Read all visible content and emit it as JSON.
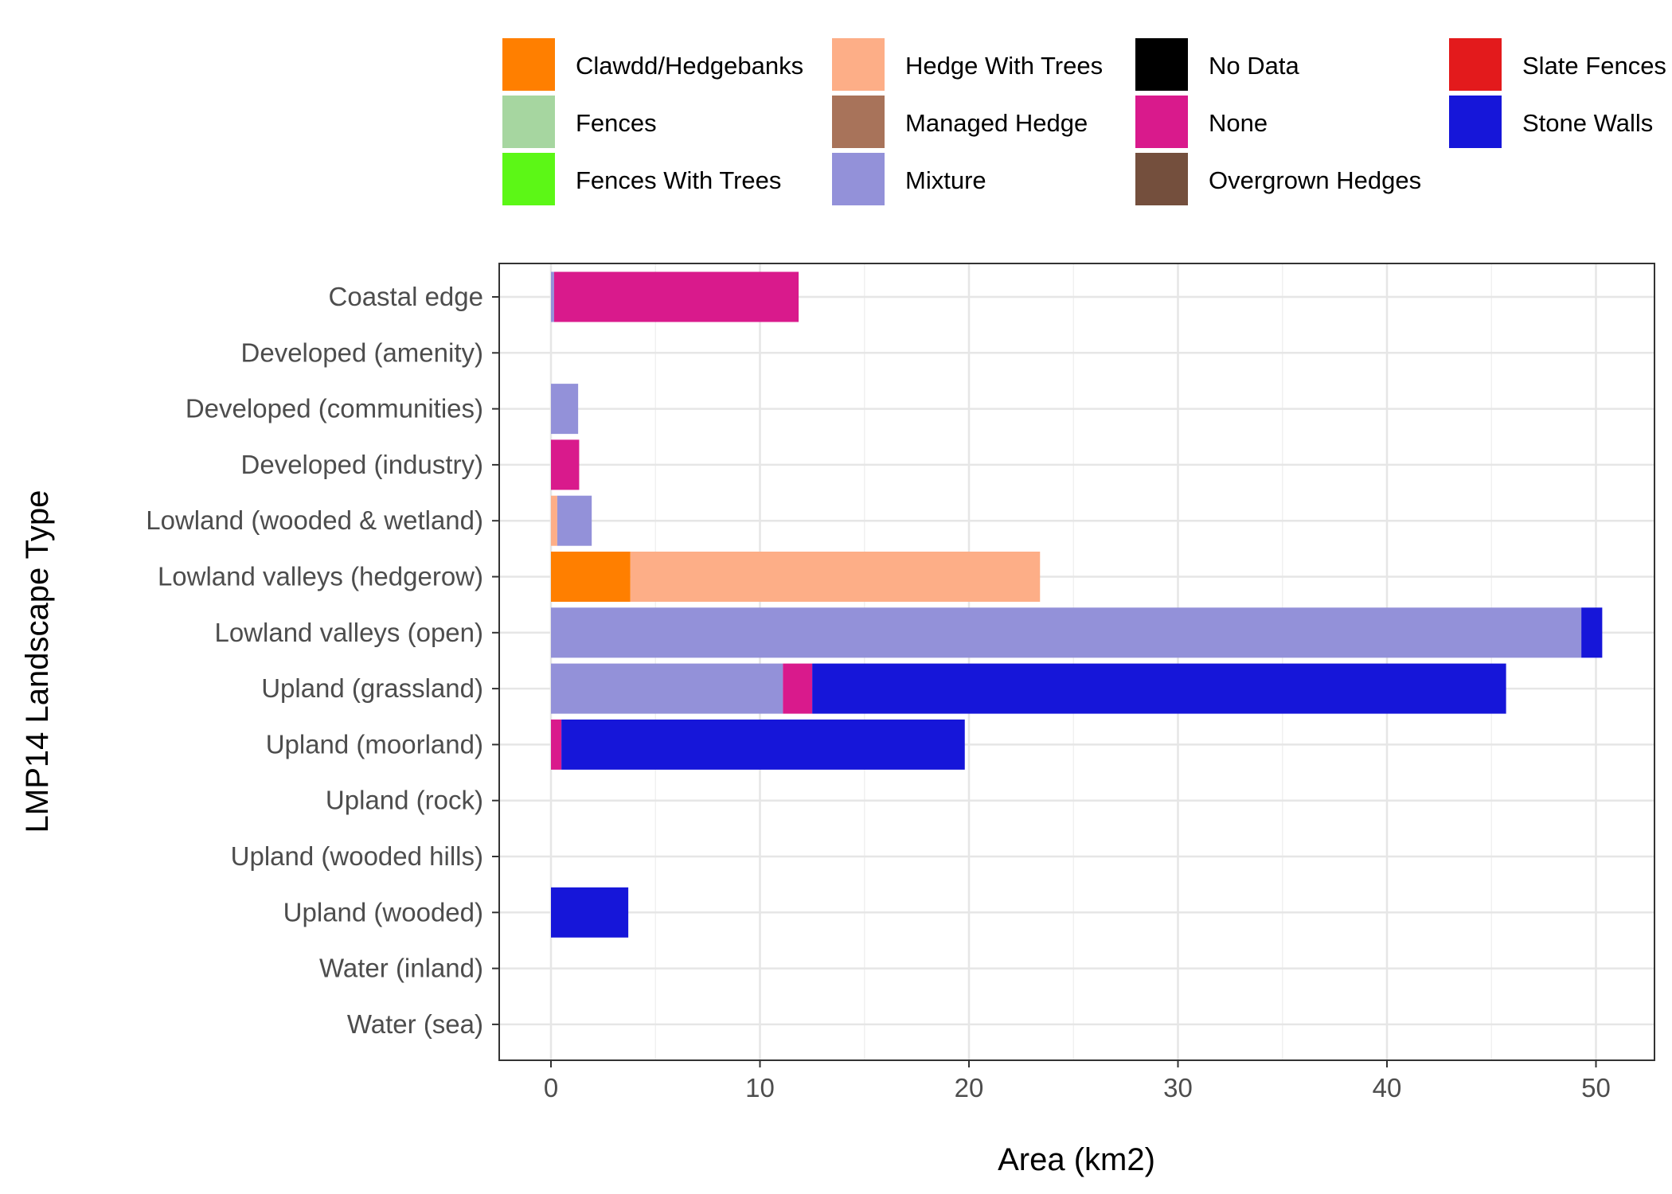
{
  "chart_data": {
    "type": "bar",
    "orientation": "horizontal",
    "stacked": true,
    "title": "",
    "xlabel": "Area (km2)",
    "ylabel": "LMP14 Landscape Type",
    "xlim": [
      -2.5,
      52.5
    ],
    "xticks": [
      0,
      10,
      20,
      30,
      40,
      50
    ],
    "grid": true,
    "legend_position": "top",
    "categories": [
      "Coastal edge",
      "Developed (amenity)",
      "Developed (communities)",
      "Developed (industry)",
      "Lowland (wooded & wetland)",
      "Lowland valleys (hedgerow)",
      "Lowland valleys (open)",
      "Upland (grassland)",
      "Upland (moorland)",
      "Upland (rock)",
      "Upland (wooded hills)",
      "Upland (wooded)",
      "Water (inland)",
      "Water (sea)"
    ],
    "series": [
      {
        "name": "Clawdd/Hedgebanks",
        "color": "#FF7F00",
        "values": [
          0,
          0,
          0,
          0,
          0,
          3.8,
          0,
          0,
          0,
          0,
          0,
          0,
          0,
          0
        ]
      },
      {
        "name": "Fences",
        "color": "#A6D6A0",
        "values": [
          0,
          0,
          0,
          0,
          0,
          0,
          0,
          0,
          0,
          0,
          0,
          0,
          0,
          0
        ]
      },
      {
        "name": "Fences With Trees",
        "color": "#5CF716",
        "values": [
          0,
          0,
          0,
          0,
          0,
          0,
          0,
          0,
          0,
          0,
          0,
          0,
          0,
          0
        ]
      },
      {
        "name": "Hedge With Trees",
        "color": "#FDAE87",
        "values": [
          0,
          0,
          0,
          0,
          0.3,
          19.6,
          0,
          0,
          0,
          0,
          0,
          0,
          0,
          0
        ]
      },
      {
        "name": "Managed Hedge",
        "color": "#A8735A",
        "values": [
          0,
          0,
          0,
          0,
          0,
          0,
          0,
          0,
          0,
          0,
          0,
          0,
          0,
          0
        ]
      },
      {
        "name": "Mixture",
        "color": "#9391D9",
        "values": [
          0.15,
          0,
          1.3,
          0,
          1.65,
          0,
          49.3,
          11.1,
          0,
          0,
          0,
          0,
          0,
          0
        ]
      },
      {
        "name": "No Data",
        "color": "#000000",
        "values": [
          0,
          0,
          0,
          0,
          0,
          0,
          0,
          0,
          0,
          0,
          0,
          0,
          0,
          0
        ]
      },
      {
        "name": "None",
        "color": "#D91A8C",
        "values": [
          11.7,
          0,
          0,
          1.35,
          0,
          0,
          0,
          1.4,
          0.5,
          0,
          0,
          0,
          0,
          0
        ]
      },
      {
        "name": "Overgrown Hedges",
        "color": "#744F3D",
        "values": [
          0,
          0,
          0,
          0,
          0,
          0,
          0,
          0,
          0,
          0,
          0,
          0,
          0,
          0
        ]
      },
      {
        "name": "Slate Fences",
        "color": "#E31A1C",
        "values": [
          0,
          0,
          0,
          0,
          0,
          0,
          0,
          0,
          0,
          0,
          0,
          0,
          0,
          0
        ]
      },
      {
        "name": "Stone Walls",
        "color": "#1616D9",
        "values": [
          0,
          0,
          0,
          0,
          0,
          0,
          1.0,
          33.2,
          19.3,
          0,
          0,
          3.7,
          0,
          0
        ]
      }
    ]
  }
}
